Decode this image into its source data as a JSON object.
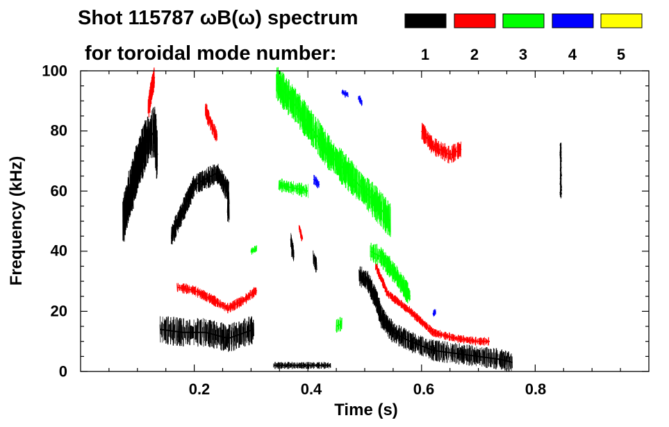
{
  "chart_data": {
    "type": "heatmap",
    "title_line1": "Shot 115787 ωB(ω) spectrum",
    "title_line2": "for toroidal mode number:",
    "xlabel": "Time (s)",
    "ylabel": "Frequency (kHz)",
    "xlim": [
      0.0,
      1.0
    ],
    "ylim": [
      0,
      100
    ],
    "x_ticks": [
      0.2,
      0.4,
      0.6,
      0.8
    ],
    "x_tick_labels": [
      "0.2",
      "0.4",
      "0.6",
      "0.8"
    ],
    "y_ticks": [
      0,
      20,
      40,
      60,
      80,
      100
    ],
    "y_tick_labels": [
      "0",
      "20",
      "40",
      "60",
      "80",
      "100"
    ],
    "legend": [
      {
        "label": "1",
        "color": "#000000"
      },
      {
        "label": "2",
        "color": "#ff0000"
      },
      {
        "label": "3",
        "color": "#00ff00"
      },
      {
        "label": "4",
        "color": "#0000ff"
      },
      {
        "label": "5",
        "color": "#ffff00"
      }
    ],
    "series": [
      {
        "name": "n=1",
        "color": "#000000",
        "segments": [
          {
            "points": [
              [
                0.075,
                50
              ],
              [
                0.085,
                58
              ],
              [
                0.1,
                68
              ],
              [
                0.115,
                76
              ],
              [
                0.13,
                80
              ],
              [
                0.135,
                72
              ]
            ],
            "spread": 7
          },
          {
            "points": [
              [
                0.16,
                45
              ],
              [
                0.2,
                62
              ],
              [
                0.24,
                66
              ],
              [
                0.26,
                60
              ],
              [
                0.26,
                52
              ]
            ],
            "spread": 3
          },
          {
            "points": [
              [
                0.14,
                14
              ],
              [
                0.18,
                13
              ],
              [
                0.22,
                13
              ],
              [
                0.26,
                11
              ],
              [
                0.29,
                13
              ],
              [
                0.305,
                14
              ]
            ],
            "spread": 4
          },
          {
            "points": [
              [
                0.37,
                44
              ],
              [
                0.375,
                38
              ]
            ],
            "spread": 2
          },
          {
            "points": [
              [
                0.41,
                38
              ],
              [
                0.415,
                35
              ]
            ],
            "spread": 2
          },
          {
            "points": [
              [
                0.49,
                32
              ],
              [
                0.505,
                30
              ],
              [
                0.52,
                24
              ],
              [
                0.53,
                18
              ],
              [
                0.55,
                13
              ],
              [
                0.58,
                10
              ],
              [
                0.62,
                7
              ],
              [
                0.66,
                6
              ],
              [
                0.7,
                5
              ],
              [
                0.74,
                4
              ],
              [
                0.76,
                3
              ]
            ],
            "spread": 3
          },
          {
            "points": [
              [
                0.34,
                2
              ],
              [
                0.4,
                2
              ],
              [
                0.44,
                2
              ]
            ],
            "spread": 1
          },
          {
            "points": [
              [
                0.845,
                58
              ],
              [
                0.845,
                76
              ]
            ],
            "spread": 0.5
          }
        ]
      },
      {
        "name": "n=2",
        "color": "#ff0000",
        "segments": [
          {
            "points": [
              [
                0.12,
                88
              ],
              [
                0.125,
                94
              ],
              [
                0.13,
                98
              ]
            ],
            "spread": 3
          },
          {
            "points": [
              [
                0.22,
                87
              ],
              [
                0.23,
                82
              ],
              [
                0.24,
                78
              ]
            ],
            "spread": 2
          },
          {
            "points": [
              [
                0.17,
                28
              ],
              [
                0.2,
                27
              ],
              [
                0.23,
                24
              ],
              [
                0.26,
                21
              ],
              [
                0.29,
                24
              ],
              [
                0.31,
                27
              ]
            ],
            "spread": 1.5
          },
          {
            "points": [
              [
                0.52,
                35
              ],
              [
                0.54,
                26
              ],
              [
                0.58,
                20
              ],
              [
                0.62,
                13
              ],
              [
                0.66,
                11
              ],
              [
                0.7,
                10
              ],
              [
                0.72,
                10
              ]
            ],
            "spread": 1.2
          },
          {
            "points": [
              [
                0.6,
                80
              ],
              [
                0.62,
                75
              ],
              [
                0.65,
                72
              ],
              [
                0.67,
                74
              ]
            ],
            "spread": 2.5
          },
          {
            "points": [
              [
                0.385,
                48
              ],
              [
                0.39,
                44
              ]
            ],
            "spread": 1
          }
        ]
      },
      {
        "name": "n=3",
        "color": "#00ff00",
        "segments": [
          {
            "points": [
              [
                0.345,
                96
              ],
              [
                0.38,
                88
              ],
              [
                0.41,
                80
              ],
              [
                0.44,
                72
              ],
              [
                0.48,
                64
              ],
              [
                0.52,
                56
              ],
              [
                0.545,
                50
              ]
            ],
            "spread": 5
          },
          {
            "points": [
              [
                0.35,
                62
              ],
              [
                0.4,
                60
              ]
            ],
            "spread": 2
          },
          {
            "points": [
              [
                0.51,
                40
              ],
              [
                0.53,
                38
              ],
              [
                0.555,
                32
              ],
              [
                0.58,
                25
              ]
            ],
            "spread": 3
          },
          {
            "points": [
              [
                0.3,
                40
              ],
              [
                0.31,
                41
              ]
            ],
            "spread": 1
          },
          {
            "points": [
              [
                0.45,
                15
              ],
              [
                0.46,
                16
              ]
            ],
            "spread": 2
          }
        ]
      },
      {
        "name": "n=4",
        "color": "#0000ff",
        "segments": [
          {
            "points": [
              [
                0.46,
                93
              ],
              [
                0.47,
                92
              ]
            ],
            "spread": 1
          },
          {
            "points": [
              [
                0.49,
                91
              ],
              [
                0.495,
                89
              ]
            ],
            "spread": 1
          },
          {
            "points": [
              [
                0.41,
                64
              ],
              [
                0.42,
                62
              ]
            ],
            "spread": 1.5
          },
          {
            "points": [
              [
                0.62,
                19
              ],
              [
                0.625,
                20
              ]
            ],
            "spread": 1
          }
        ]
      }
    ]
  }
}
